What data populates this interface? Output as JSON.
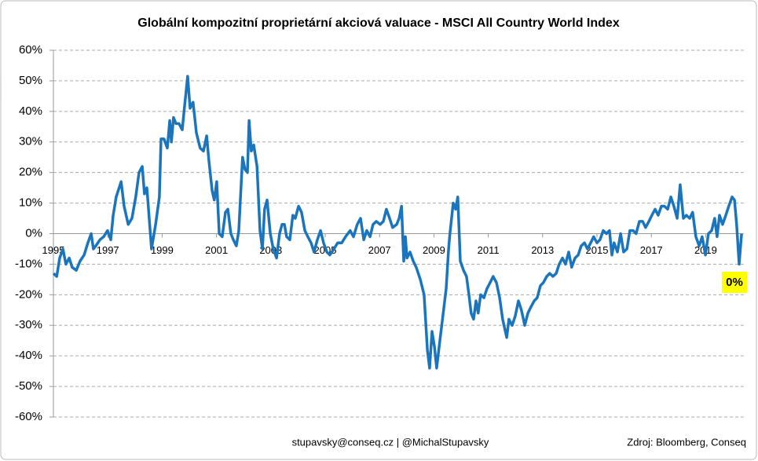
{
  "chart_data": {
    "type": "line",
    "title": "Globální kompozitní proprietární akciová valuace - MSCI All Country World Index",
    "footer": "stupavsky@conseq.cz  |  @MichalStupavsky",
    "source": "Zdroj: Bloomberg, Conseq",
    "annotation": "0%",
    "color": "#1b75bc",
    "grid": true,
    "xlim": [
      1995,
      2020.4
    ],
    "xticks": [
      1995,
      1997,
      1999,
      2001,
      2003,
      2005,
      2007,
      2009,
      2011,
      2013,
      2015,
      2017,
      2019
    ],
    "ylim": [
      -60,
      60
    ],
    "yticks": [
      {
        "value": 60,
        "label": "60%"
      },
      {
        "value": 50,
        "label": "50%"
      },
      {
        "value": 40,
        "label": "40%"
      },
      {
        "value": 30,
        "label": "30%"
      },
      {
        "value": 20,
        "label": "20%"
      },
      {
        "value": 10,
        "label": "10%"
      },
      {
        "value": 0,
        "label": "0%"
      },
      {
        "value": -10,
        "label": "-10%"
      },
      {
        "value": -20,
        "label": "-20%"
      },
      {
        "value": -30,
        "label": "-30%"
      },
      {
        "value": -40,
        "label": "-40%"
      },
      {
        "value": -50,
        "label": "-50%"
      },
      {
        "value": -60,
        "label": "-60%"
      }
    ],
    "x": [
      1995.0,
      1995.12,
      1995.23,
      1995.35,
      1995.46,
      1995.58,
      1995.69,
      1995.84,
      1995.98,
      1996.13,
      1996.27,
      1996.39,
      1996.47,
      1996.56,
      1996.71,
      1996.85,
      1996.99,
      1997.11,
      1997.2,
      1997.31,
      1997.49,
      1997.6,
      1997.75,
      1997.89,
      1998.03,
      1998.15,
      1998.27,
      1998.35,
      1998.44,
      1998.61,
      1998.76,
      1998.9,
      1998.96,
      1999.07,
      1999.19,
      1999.28,
      1999.34,
      1999.42,
      1999.51,
      1999.62,
      1999.74,
      1999.83,
      1999.94,
      2000.03,
      2000.14,
      2000.26,
      2000.4,
      2000.52,
      2000.64,
      2000.72,
      2000.84,
      2000.92,
      2001.01,
      2001.1,
      2001.21,
      2001.33,
      2001.42,
      2001.53,
      2001.62,
      2001.73,
      2001.82,
      2001.96,
      2002.05,
      2002.14,
      2002.2,
      2002.28,
      2002.37,
      2002.49,
      2002.6,
      2002.69,
      2002.77,
      2002.86,
      2002.98,
      2003.09,
      2003.21,
      2003.32,
      2003.41,
      2003.5,
      2003.58,
      2003.7,
      2003.81,
      2003.9,
      2004.02,
      2004.13,
      2004.25,
      2004.36,
      2004.48,
      2004.59,
      2004.71,
      2004.83,
      2004.94,
      2005.06,
      2005.17,
      2005.32,
      2005.46,
      2005.61,
      2005.75,
      2005.92,
      2006.04,
      2006.18,
      2006.3,
      2006.42,
      2006.53,
      2006.65,
      2006.76,
      2006.88,
      2007.02,
      2007.14,
      2007.25,
      2007.37,
      2007.48,
      2007.63,
      2007.72,
      2007.81,
      2007.89,
      2007.95,
      2008.01,
      2008.12,
      2008.24,
      2008.35,
      2008.5,
      2008.64,
      2008.76,
      2008.84,
      2008.93,
      2009.02,
      2009.1,
      2009.22,
      2009.33,
      2009.45,
      2009.54,
      2009.59,
      2009.71,
      2009.8,
      2009.88,
      2009.97,
      2010.09,
      2010.2,
      2010.29,
      2010.37,
      2010.46,
      2010.55,
      2010.63,
      2010.72,
      2010.84,
      2010.95,
      2011.07,
      2011.18,
      2011.3,
      2011.42,
      2011.53,
      2011.68,
      2011.76,
      2011.88,
      2011.99,
      2012.11,
      2012.22,
      2012.34,
      2012.46,
      2012.57,
      2012.69,
      2012.8,
      2012.92,
      2013.03,
      2013.15,
      2013.26,
      2013.38,
      2013.5,
      2013.61,
      2013.73,
      2013.84,
      2013.96,
      2014.07,
      2014.19,
      2014.31,
      2014.42,
      2014.54,
      2014.65,
      2014.77,
      2014.88,
      2015.0,
      2015.11,
      2015.23,
      2015.35,
      2015.46,
      2015.55,
      2015.63,
      2015.75,
      2015.87,
      2015.98,
      2016.1,
      2016.21,
      2016.33,
      2016.44,
      2016.56,
      2016.68,
      2016.79,
      2016.91,
      2017.02,
      2017.14,
      2017.25,
      2017.37,
      2017.48,
      2017.6,
      2017.72,
      2017.83,
      2017.95,
      2018.06,
      2018.18,
      2018.29,
      2018.41,
      2018.52,
      2018.64,
      2018.76,
      2018.87,
      2018.99,
      2019.1,
      2019.22,
      2019.33,
      2019.42,
      2019.51,
      2019.62,
      2019.74,
      2019.85,
      2019.97,
      2020.06,
      2020.14,
      2020.23,
      2020.32
    ],
    "values": [
      -13,
      -14,
      -8,
      -5,
      -10,
      -8,
      -11,
      -12,
      -9,
      -7,
      -3,
      0,
      -5,
      -4,
      -2,
      -1,
      1,
      -2,
      6,
      12,
      17,
      9,
      3,
      5,
      12,
      20,
      22,
      13,
      15,
      -5,
      3,
      12,
      31,
      31,
      28,
      37,
      30,
      38,
      36,
      36,
      34,
      42,
      51.5,
      41,
      43,
      33,
      28,
      27,
      32,
      24,
      14,
      11,
      17,
      0,
      -1,
      7,
      8,
      0,
      -2,
      -4,
      1,
      25,
      21,
      20,
      37,
      27,
      29,
      22,
      1,
      -5,
      8,
      11,
      0,
      -5,
      -8,
      0,
      3,
      3,
      -1,
      -2,
      6,
      5,
      9,
      7,
      1,
      -1,
      -3,
      -6,
      -2,
      1,
      -3,
      -6,
      -7,
      -5,
      -3,
      -3,
      -1,
      1,
      -1,
      3,
      5,
      -2,
      1,
      -1,
      3,
      4,
      3,
      4,
      8,
      5,
      2,
      3,
      5,
      9,
      -9,
      -1,
      -8,
      -6,
      -9,
      -11,
      -15,
      -20,
      -38,
      -44,
      -32,
      -37,
      -44,
      -35,
      -27,
      -18,
      -5,
      0,
      10,
      8,
      12,
      -9,
      -12,
      -14,
      -20,
      -26,
      -28,
      -22,
      -26,
      -20,
      -21,
      -18,
      -16,
      -14,
      -16,
      -21,
      -28,
      -34,
      -28,
      -30,
      -27,
      -22,
      -25,
      -30,
      -26,
      -24,
      -22,
      -21,
      -17,
      -16,
      -14,
      -13,
      -14,
      -13,
      -10,
      -8,
      -10,
      -6,
      -11,
      -8,
      -7,
      -4,
      -3,
      -5,
      -3,
      -1,
      -3,
      -2,
      1,
      0,
      1,
      -7,
      -3,
      -6,
      0,
      -6,
      -5,
      1,
      1,
      0,
      4,
      4,
      2,
      4,
      6,
      8,
      6,
      9,
      9,
      8,
      12,
      9,
      5,
      16,
      5,
      6,
      5,
      7,
      -1,
      -4,
      -1,
      -7,
      0,
      1,
      5,
      -1,
      6,
      3,
      6,
      9,
      12,
      11,
      3,
      -10,
      0
    ]
  }
}
